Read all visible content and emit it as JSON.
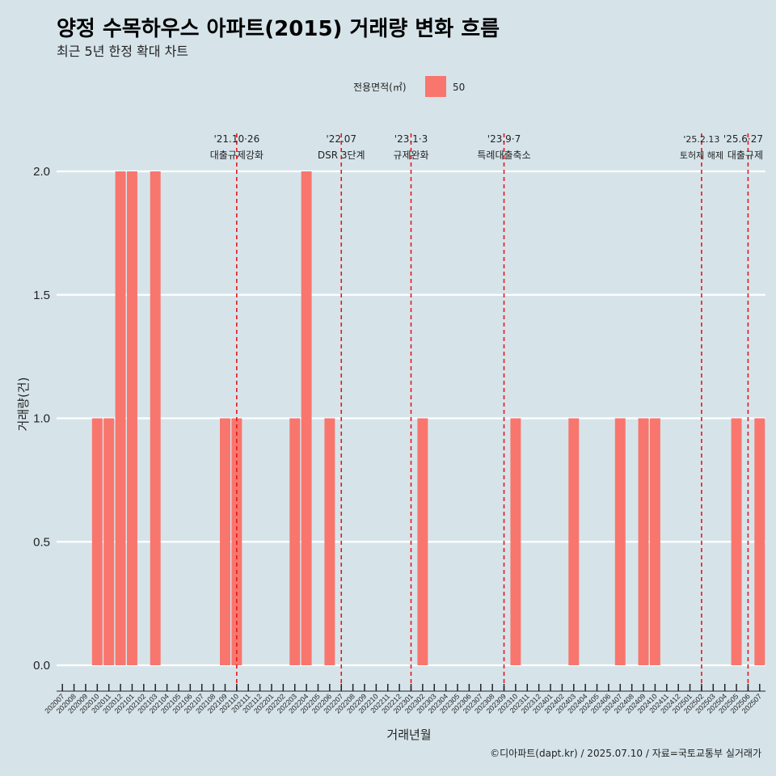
{
  "chart_data": {
    "type": "bar",
    "title": "양정 수목하우스 아파트(2015) 거래량 변화 흐름",
    "subtitle": "최근 5년 한정 확대 차트",
    "xlabel": "거래년월",
    "ylabel": "거래량(건)",
    "ylim": [
      0,
      2
    ],
    "yticks": [
      "0.0",
      "0.5",
      "1.0",
      "1.5",
      "2.0"
    ],
    "legend": {
      "title": "전용면적(㎡)",
      "entries": [
        {
          "label": "50",
          "color": "#f8766d"
        }
      ],
      "position": "top"
    },
    "grid": true,
    "caption": "©디아파트(dapt.kr) / 2025.07.10 / 자료=국토교통부 실거래가",
    "categories": [
      "202007",
      "202008",
      "202009",
      "202010",
      "202011",
      "202012",
      "202101",
      "202102",
      "202103",
      "202104",
      "202105",
      "202106",
      "202107",
      "202108",
      "202109",
      "202110",
      "202111",
      "202112",
      "202201",
      "202202",
      "202203",
      "202204",
      "202205",
      "202206",
      "202207",
      "202208",
      "202209",
      "202210",
      "202211",
      "202212",
      "202301",
      "202302",
      "202303",
      "202304",
      "202305",
      "202306",
      "202307",
      "202308",
      "202309",
      "202310",
      "202311",
      "202312",
      "202401",
      "202402",
      "202403",
      "202404",
      "202405",
      "202406",
      "202407",
      "202408",
      "202409",
      "202410",
      "202411",
      "202412",
      "202501",
      "202502",
      "202503",
      "202504",
      "202505",
      "202506",
      "202507"
    ],
    "series": [
      {
        "values": [
          0,
          0,
          0,
          1,
          1,
          2,
          2,
          0,
          2,
          0,
          0,
          0,
          0,
          0,
          1,
          1,
          0,
          0,
          0,
          0,
          1,
          2,
          0,
          1,
          0,
          0,
          0,
          0,
          0,
          0,
          0,
          1,
          0,
          0,
          0,
          0,
          0,
          0,
          0,
          1,
          0,
          0,
          0,
          0,
          1,
          0,
          0,
          0,
          1,
          0,
          1,
          1,
          0,
          0,
          0,
          0,
          0,
          0,
          1,
          0,
          1
        ]
      }
    ],
    "events": [
      {
        "category": "202110",
        "date": "'21.10·26",
        "label": "대출규제강화"
      },
      {
        "category": "202207",
        "date": "'22.07",
        "label": "DSR 3단계"
      },
      {
        "category": "202301",
        "date": "'23.1·3",
        "label": "규제완화"
      },
      {
        "category": "202309",
        "date": "'23.9·7",
        "label": "특례대출축소"
      },
      {
        "category": "202502",
        "date": "'25.2.13",
        "label": "토허제 해제"
      },
      {
        "category": "202506",
        "date": "'25.6·27",
        "label": "대출규제"
      }
    ],
    "colors": {
      "bar": "#f8766d",
      "event_line": "#e8161b",
      "background": "#d6e4ea",
      "grid": "#ffffff"
    }
  }
}
